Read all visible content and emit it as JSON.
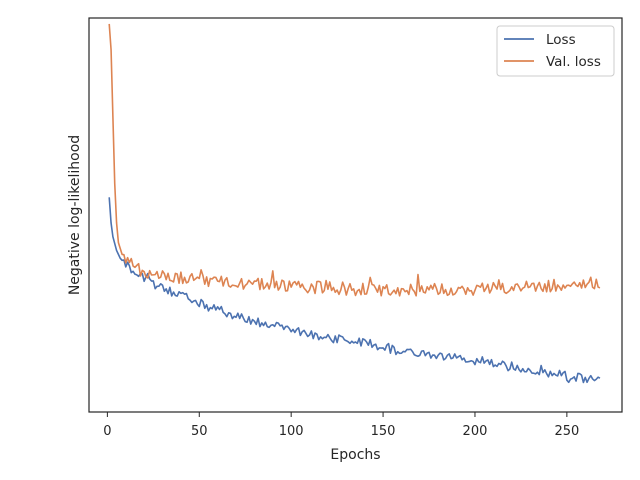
{
  "chart_data": {
    "type": "line",
    "title": "",
    "xlabel": "Epochs",
    "ylabel": "Negative log-likelihood",
    "xlim": [
      -10,
      280
    ],
    "ylim": [
      0,
      1
    ],
    "xticks": [
      0,
      50,
      100,
      150,
      200,
      250
    ],
    "yticks": [],
    "grid": false,
    "legend_position": "top-right",
    "colors": {
      "Loss": "#4c72b0",
      "Val. loss": "#dd8452",
      "axes": "#262626"
    },
    "series": [
      {
        "name": "Loss",
        "anchors": [
          [
            1,
            0.545
          ],
          [
            2,
            0.48
          ],
          [
            3,
            0.445
          ],
          [
            5,
            0.41
          ],
          [
            7,
            0.39
          ],
          [
            10,
            0.375
          ],
          [
            14,
            0.36
          ],
          [
            18,
            0.35
          ],
          [
            22,
            0.335
          ],
          [
            30,
            0.315
          ],
          [
            40,
            0.295
          ],
          [
            50,
            0.275
          ],
          [
            60,
            0.26
          ],
          [
            70,
            0.245
          ],
          [
            80,
            0.23
          ],
          [
            90,
            0.215
          ],
          [
            95,
            0.225
          ],
          [
            100,
            0.205
          ],
          [
            120,
            0.19
          ],
          [
            140,
            0.175
          ],
          [
            160,
            0.155
          ],
          [
            180,
            0.14
          ],
          [
            200,
            0.13
          ],
          [
            220,
            0.115
          ],
          [
            240,
            0.1
          ],
          [
            260,
            0.085
          ],
          [
            268,
            0.08
          ]
        ],
        "noise": 0.012
      },
      {
        "name": "Val. loss",
        "anchors": [
          [
            1,
            0.985
          ],
          [
            2,
            0.92
          ],
          [
            3,
            0.75
          ],
          [
            4,
            0.58
          ],
          [
            5,
            0.48
          ],
          [
            6,
            0.43
          ],
          [
            8,
            0.4
          ],
          [
            10,
            0.39
          ],
          [
            15,
            0.37
          ],
          [
            20,
            0.355
          ],
          [
            30,
            0.345
          ],
          [
            40,
            0.34
          ],
          [
            60,
            0.33
          ],
          [
            80,
            0.325
          ],
          [
            100,
            0.32
          ],
          [
            120,
            0.315
          ],
          [
            140,
            0.31
          ],
          [
            160,
            0.31
          ],
          [
            180,
            0.31
          ],
          [
            200,
            0.31
          ],
          [
            220,
            0.315
          ],
          [
            240,
            0.32
          ],
          [
            260,
            0.325
          ],
          [
            268,
            0.325
          ]
        ],
        "noise": 0.016
      }
    ]
  }
}
